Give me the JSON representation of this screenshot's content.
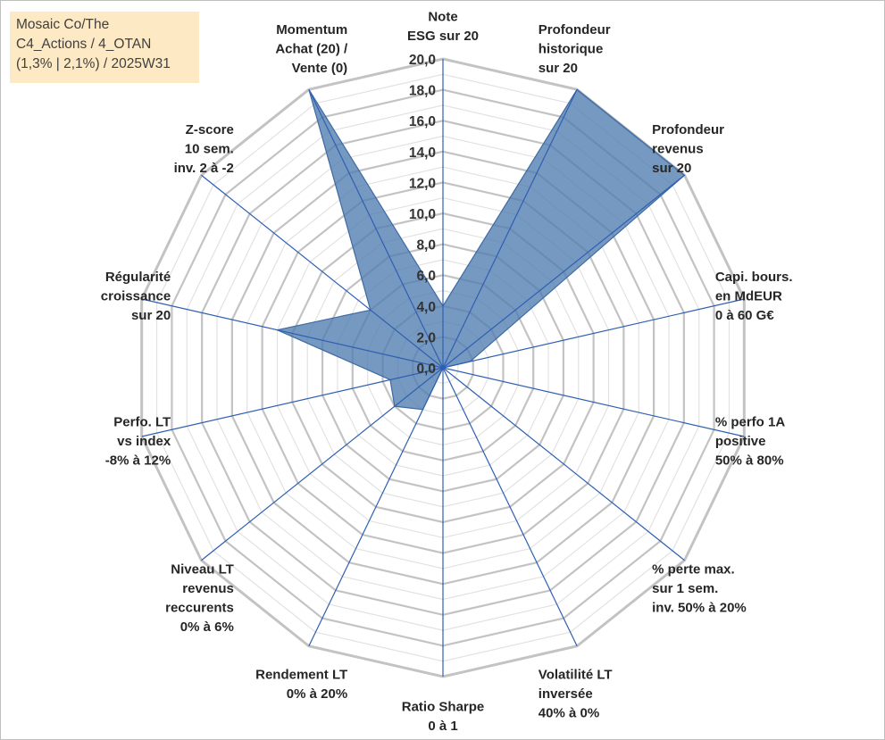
{
  "info_box": {
    "line1": "Mosaic Co/The",
    "line2": "C4_Actions / 4_OTAN",
    "line3": "(1,3% | 2,1%) / 2025W31"
  },
  "chart_data": {
    "type": "radar",
    "title": "",
    "rlim": [
      0,
      20
    ],
    "tick_step": 2,
    "tick_labels": [
      "0,0",
      "2,0",
      "4,0",
      "6,0",
      "8,0",
      "10,0",
      "12,0",
      "14,0",
      "16,0",
      "18,0",
      "20,0"
    ],
    "grid": true,
    "grid_shape": "polygon",
    "legend": "none",
    "colors": {
      "fill": "#4f7cb0",
      "outline": "#3d6aa3",
      "spoke": "#2f5fb3",
      "grid": "#c3c3c3"
    },
    "axes": [
      {
        "label_lines": [
          "Note",
          "ESG sur 20"
        ],
        "value": 4.0
      },
      {
        "label_lines": [
          "Profondeur",
          "historique",
          "sur 20"
        ],
        "value": 20.0
      },
      {
        "label_lines": [
          "Profondeur",
          "revenus",
          "sur 20"
        ],
        "value": 20.0
      },
      {
        "label_lines": [
          "Capi. bours.",
          "en MdEUR",
          "0 à 60 G€"
        ],
        "value": 1.8
      },
      {
        "label_lines": [
          "% perfo 1A",
          "positive",
          "50% à 80%"
        ],
        "value": 0.0
      },
      {
        "label_lines": [
          "% perte max.",
          "sur 1 sem.",
          "inv. 50% à 20%"
        ],
        "value": 0.0
      },
      {
        "label_lines": [
          "Volatilité LT",
          "inversée",
          "40% à 0%"
        ],
        "value": 0.0
      },
      {
        "label_lines": [
          "Ratio Sharpe",
          "0 à 1"
        ],
        "value": 0.0
      },
      {
        "label_lines": [
          "Rendement LT",
          "0% à 20%"
        ],
        "value": 3.0
      },
      {
        "label_lines": [
          "Niveau LT",
          "revenus",
          "reccurents",
          "0% à 6%"
        ],
        "value": 4.0
      },
      {
        "label_lines": [
          "Perfo. LT",
          "vs index",
          "-8% à 12%"
        ],
        "value": 3.5
      },
      {
        "label_lines": [
          "Régularité",
          "croissance",
          "sur 20"
        ],
        "value": 11.0
      },
      {
        "label_lines": [
          "Z-score",
          "10 sem.",
          "inv. 2 à -2"
        ],
        "value": 6.0
      },
      {
        "label_lines": [
          "Momentum",
          "Achat (20) /",
          "Vente (0)"
        ],
        "value": 20.0
      }
    ]
  }
}
